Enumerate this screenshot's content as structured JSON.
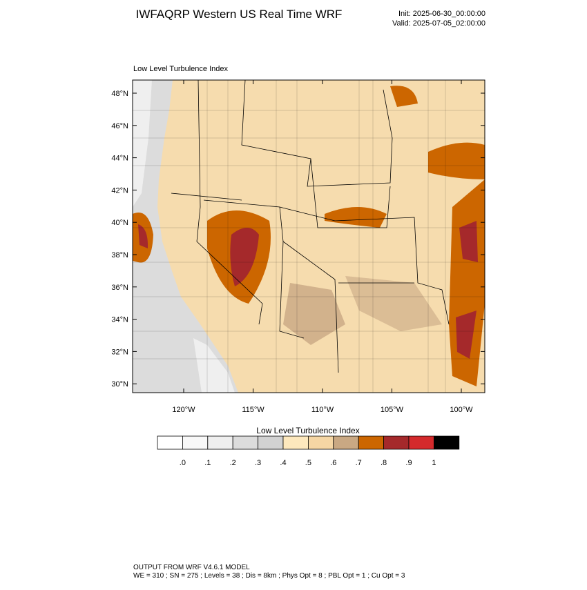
{
  "header": {
    "title": "IWFAQRP Western US Real Time WRF",
    "init": "Init: 2025-06-30_00:00:00",
    "valid": "Valid: 2025-07-05_02:00:00"
  },
  "map": {
    "subtitle": "Low Level Turbulence Index",
    "lat_labels": [
      "48°N",
      "46°N",
      "44°N",
      "42°N",
      "40°N",
      "38°N",
      "36°N",
      "34°N",
      "32°N",
      "30°N"
    ],
    "lon_labels": [
      "120°W",
      "115°W",
      "110°W",
      "105°W",
      "100°W"
    ]
  },
  "colorbar": {
    "title": "Low Level Turbulence Index",
    "labels": [
      ".0",
      ".1",
      ".2",
      ".3",
      ".4",
      ".5",
      ".6",
      ".7",
      ".8",
      ".9",
      "1"
    ],
    "colors": [
      "#ffffff",
      "#f8f8f8",
      "#efefef",
      "#dcdcdc",
      "#d2d2d2",
      "#fde8bd",
      "#f5d6a4",
      "#c9a883",
      "#cc6600",
      "#a5292b",
      "#d42a2c",
      "#000000"
    ]
  },
  "footer": {
    "line1": "OUTPUT FROM WRF V4.6.1 MODEL",
    "line2": "WE = 310 ; SN = 275 ; Levels = 38 ; Dis = 8km ; Phys Opt = 8 ; PBL Opt = 1 ; Cu Opt = 3"
  }
}
